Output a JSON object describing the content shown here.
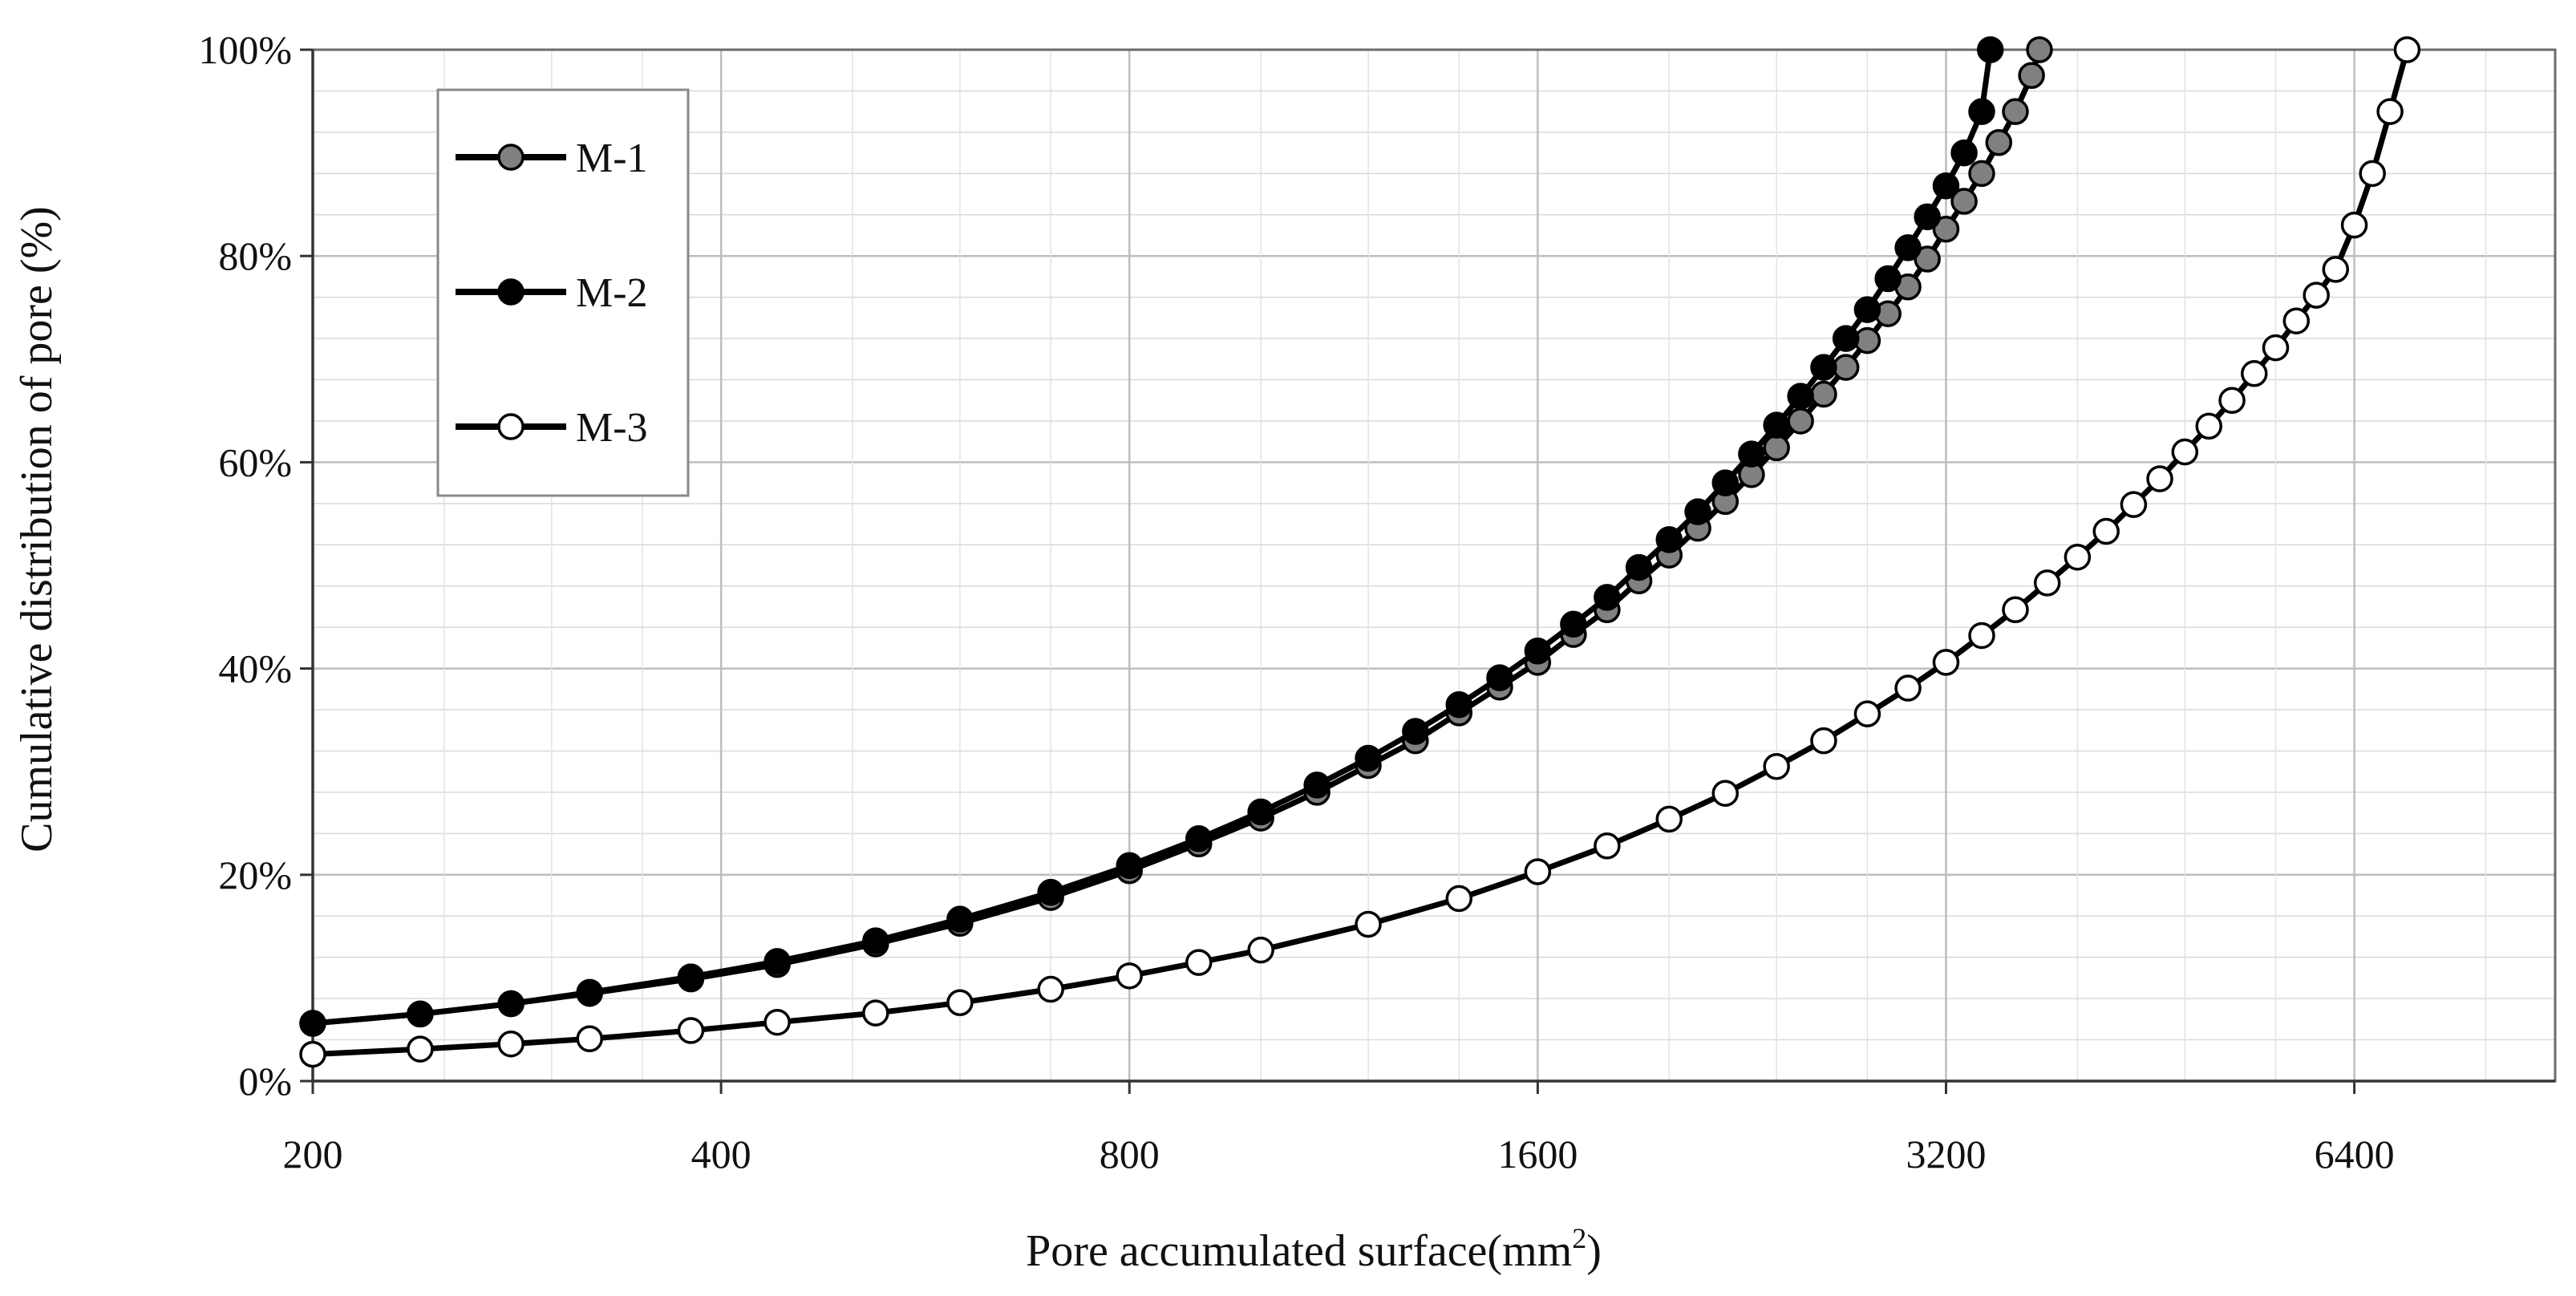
{
  "chart_data": {
    "type": "scatter",
    "title": "",
    "xlabel": "Pore accumulated surface(mm",
    "xlabel_sup": "2",
    "xlabel_close": ")",
    "ylabel": "Cumulative distribution of pore (%)",
    "x_scale": "log2",
    "xlim": [
      200,
      9000
    ],
    "ylim": [
      0,
      100
    ],
    "x_ticks": [
      {
        "value": 200,
        "label": "200"
      },
      {
        "value": 400,
        "label": "400"
      },
      {
        "value": 800,
        "label": "800"
      },
      {
        "value": 1600,
        "label": "1600"
      },
      {
        "value": 3200,
        "label": "3200"
      },
      {
        "value": 6400,
        "label": "6400"
      }
    ],
    "y_ticks": [
      {
        "value": 0,
        "label": "0%"
      },
      {
        "value": 20,
        "label": "20%"
      },
      {
        "value": 40,
        "label": "40%"
      },
      {
        "value": 60,
        "label": "60%"
      },
      {
        "value": 80,
        "label": "80%"
      },
      {
        "value": 100,
        "label": "100%"
      }
    ],
    "grid": true,
    "legend_position": "top-left",
    "series": [
      {
        "name": "M-1",
        "marker_fill": "#808080",
        "x": [
          200,
          240,
          280,
          320,
          380,
          440,
          520,
          600,
          700,
          800,
          900,
          1000,
          1100,
          1200,
          1300,
          1400,
          1500,
          1600,
          1700,
          1800,
          1900,
          2000,
          2100,
          2200,
          2300,
          2400,
          2500,
          2600,
          2700,
          2800,
          2900,
          3000,
          3100,
          3200,
          3300,
          3400,
          3500,
          3600,
          3700,
          3750
        ],
        "y": [
          5.6,
          6.5,
          7.5,
          8.5,
          9.9,
          11.3,
          13.3,
          15.3,
          17.8,
          20.4,
          23.0,
          25.5,
          28.0,
          30.6,
          33.0,
          35.7,
          38.2,
          40.6,
          43.3,
          45.7,
          48.5,
          51.0,
          53.6,
          56.2,
          58.8,
          61.4,
          64.0,
          66.6,
          69.2,
          71.8,
          74.4,
          77.0,
          79.7,
          82.6,
          85.3,
          88.0,
          91.0,
          94.0,
          97.5,
          100
        ]
      },
      {
        "name": "M-2",
        "marker_fill": "#000000",
        "x": [
          200,
          240,
          280,
          320,
          380,
          440,
          520,
          600,
          700,
          800,
          900,
          1000,
          1100,
          1200,
          1300,
          1400,
          1500,
          1600,
          1700,
          1800,
          1900,
          2000,
          2100,
          2200,
          2300,
          2400,
          2500,
          2600,
          2700,
          2800,
          2900,
          3000,
          3100,
          3200,
          3300,
          3400,
          3450
        ],
        "y": [
          5.6,
          6.5,
          7.5,
          8.6,
          10.1,
          11.6,
          13.6,
          15.7,
          18.3,
          20.9,
          23.5,
          26.1,
          28.7,
          31.3,
          33.9,
          36.5,
          39.1,
          41.7,
          44.3,
          46.9,
          49.8,
          52.5,
          55.2,
          58.0,
          60.8,
          63.6,
          66.4,
          69.2,
          72.0,
          74.8,
          77.8,
          80.8,
          83.8,
          86.8,
          90.0,
          94.0,
          100
        ]
      },
      {
        "name": "M-3",
        "marker_fill": "#ffffff",
        "x": [
          200,
          240,
          280,
          320,
          380,
          440,
          520,
          600,
          700,
          800,
          900,
          1000,
          1200,
          1400,
          1600,
          1800,
          2000,
          2200,
          2400,
          2600,
          2800,
          3000,
          3200,
          3400,
          3600,
          3800,
          4000,
          4200,
          4400,
          4600,
          4800,
          5000,
          5200,
          5400,
          5600,
          5800,
          6000,
          6200,
          6400,
          6600,
          6800,
          7000
        ],
        "y": [
          2.6,
          3.1,
          3.6,
          4.1,
          4.9,
          5.7,
          6.6,
          7.6,
          8.9,
          10.2,
          11.5,
          12.7,
          15.2,
          17.7,
          20.3,
          22.8,
          25.4,
          27.9,
          30.5,
          33.0,
          35.6,
          38.1,
          40.6,
          43.2,
          45.7,
          48.3,
          50.8,
          53.3,
          55.9,
          58.4,
          61.0,
          63.5,
          66.0,
          68.6,
          71.1,
          73.7,
          76.2,
          78.7,
          83.0,
          88.0,
          94.0,
          100
        ]
      }
    ]
  }
}
